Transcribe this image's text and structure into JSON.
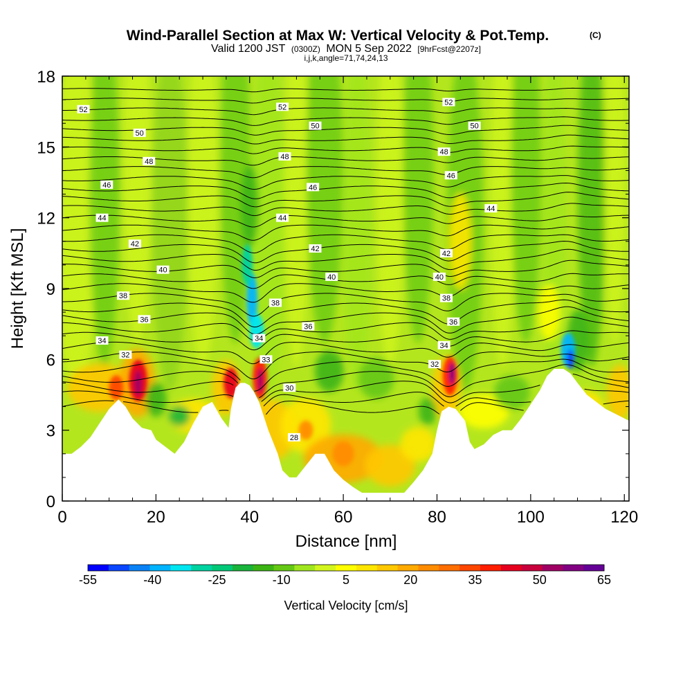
{
  "chart_data": {
    "type": "heatmap",
    "title": "Wind-Parallel Section at Max W: Vertical Velocity & Pot.Temp.",
    "title_mark": "(C)",
    "subtitle_parts": [
      "Valid 1200 JST",
      "(0300Z)",
      "MON 5 Sep 2022",
      "[9hrFcst@2207z]"
    ],
    "subtitle2": "i,j,k,angle=71,74,24,13",
    "xlabel": "Distance [nm]",
    "ylabel": "Height [Kft MSL]",
    "xlim": [
      0,
      121
    ],
    "ylim": [
      0,
      18
    ],
    "x_ticks": [
      "0",
      "20",
      "40",
      "60",
      "80",
      "100",
      "120"
    ],
    "y_ticks": [
      "0",
      "3",
      "6",
      "9",
      "12",
      "15",
      "18"
    ],
    "colorbar": {
      "label": "Vertical Velocity [cm/s]",
      "range": [
        -55,
        65
      ],
      "tick_labels": [
        "-55",
        "-40",
        "-25",
        "-10",
        "5",
        "20",
        "35",
        "50",
        "65"
      ],
      "colors": [
        "#0000ff",
        "#0a46ff",
        "#0a82f5",
        "#00b4ff",
        "#00e6f0",
        "#00d2a0",
        "#00c878",
        "#19b43c",
        "#3cb414",
        "#64c814",
        "#a0e61e",
        "#d2f51e",
        "#ffff00",
        "#ffe600",
        "#ffc800",
        "#ffaa00",
        "#ff8c00",
        "#ff6e00",
        "#ff4600",
        "#ff1e00",
        "#e6001e",
        "#c8003c",
        "#a00064",
        "#820082",
        "#640096"
      ]
    },
    "terrain_kft": [
      [
        0,
        2.0
      ],
      [
        2,
        2.0
      ],
      [
        4,
        2.3
      ],
      [
        6,
        2.7
      ],
      [
        8,
        3.3
      ],
      [
        10,
        3.9
      ],
      [
        12,
        4.3
      ],
      [
        13.5,
        4.0
      ],
      [
        15,
        3.5
      ],
      [
        17,
        3.1
      ],
      [
        19,
        3.0
      ],
      [
        20,
        2.6
      ],
      [
        22,
        2.3
      ],
      [
        24,
        2.0
      ],
      [
        26,
        2.5
      ],
      [
        28,
        3.3
      ],
      [
        30,
        4.0
      ],
      [
        32,
        4.2
      ],
      [
        34,
        3.5
      ],
      [
        35.5,
        3.1
      ],
      [
        36,
        3.9
      ],
      [
        37,
        4.8
      ],
      [
        38,
        5.0
      ],
      [
        39,
        5.0
      ],
      [
        40,
        4.9
      ],
      [
        41,
        4.6
      ],
      [
        42,
        4.2
      ],
      [
        44,
        3.0
      ],
      [
        46,
        2.0
      ],
      [
        47,
        1.3
      ],
      [
        48.5,
        1.0
      ],
      [
        50,
        1.0
      ],
      [
        52,
        1.5
      ],
      [
        54,
        2.0
      ],
      [
        56,
        2.0
      ],
      [
        58,
        1.3
      ],
      [
        60,
        0.9
      ],
      [
        62,
        0.6
      ],
      [
        64,
        0.35
      ],
      [
        70,
        0.35
      ],
      [
        73,
        0.35
      ],
      [
        75,
        0.8
      ],
      [
        77,
        1.3
      ],
      [
        79,
        2.0
      ],
      [
        80,
        3.0
      ],
      [
        81,
        3.8
      ],
      [
        82.5,
        4.0
      ],
      [
        84,
        3.9
      ],
      [
        86,
        3.4
      ],
      [
        87,
        2.5
      ],
      [
        88,
        2.2
      ],
      [
        90,
        2.4
      ],
      [
        92,
        2.8
      ],
      [
        94,
        3.0
      ],
      [
        96,
        3.0
      ],
      [
        98,
        3.5
      ],
      [
        100,
        4.1
      ],
      [
        102,
        4.7
      ],
      [
        103.5,
        5.3
      ],
      [
        105,
        5.6
      ],
      [
        107,
        5.6
      ],
      [
        108.5,
        5.4
      ],
      [
        110,
        5.0
      ],
      [
        112,
        4.5
      ],
      [
        114,
        4.2
      ],
      [
        116,
        3.9
      ],
      [
        118,
        3.7
      ],
      [
        120,
        3.5
      ],
      [
        121,
        3.4
      ]
    ],
    "theta_labels": [
      {
        "text": "52",
        "x": 4.5,
        "y": 16.6
      },
      {
        "text": "50",
        "x": 16.5,
        "y": 15.6
      },
      {
        "text": "48",
        "x": 18.5,
        "y": 14.4
      },
      {
        "text": "46",
        "x": 9.5,
        "y": 13.4
      },
      {
        "text": "44",
        "x": 8.5,
        "y": 12.0
      },
      {
        "text": "42",
        "x": 15.5,
        "y": 10.9
      },
      {
        "text": "40",
        "x": 21.5,
        "y": 9.8
      },
      {
        "text": "38",
        "x": 13,
        "y": 8.7
      },
      {
        "text": "36",
        "x": 17.5,
        "y": 7.7
      },
      {
        "text": "34",
        "x": 8.5,
        "y": 6.8
      },
      {
        "text": "32",
        "x": 13.5,
        "y": 6.2
      },
      {
        "text": "52",
        "x": 47,
        "y": 16.7
      },
      {
        "text": "50",
        "x": 54,
        "y": 15.9
      },
      {
        "text": "48",
        "x": 47.5,
        "y": 14.6
      },
      {
        "text": "46",
        "x": 53.5,
        "y": 13.3
      },
      {
        "text": "44",
        "x": 47,
        "y": 12.0
      },
      {
        "text": "42",
        "x": 54,
        "y": 10.7
      },
      {
        "text": "40",
        "x": 57.5,
        "y": 9.5
      },
      {
        "text": "38",
        "x": 45.5,
        "y": 8.4
      },
      {
        "text": "36",
        "x": 52.5,
        "y": 7.4
      },
      {
        "text": "34",
        "x": 42,
        "y": 6.9
      },
      {
        "text": "33",
        "x": 43.5,
        "y": 6.0
      },
      {
        "text": "30",
        "x": 48.5,
        "y": 4.8
      },
      {
        "text": "28",
        "x": 49.5,
        "y": 2.7
      },
      {
        "text": "52",
        "x": 82.5,
        "y": 16.9
      },
      {
        "text": "50",
        "x": 88,
        "y": 15.9
      },
      {
        "text": "48",
        "x": 81.5,
        "y": 14.8
      },
      {
        "text": "46",
        "x": 83,
        "y": 13.8
      },
      {
        "text": "44",
        "x": 91.5,
        "y": 12.4
      },
      {
        "text": "42",
        "x": 82,
        "y": 10.5
      },
      {
        "text": "40",
        "x": 80.5,
        "y": 9.5
      },
      {
        "text": "38",
        "x": 82,
        "y": 8.6
      },
      {
        "text": "36",
        "x": 83.5,
        "y": 7.6
      },
      {
        "text": "34",
        "x": 81.5,
        "y": 6.6
      },
      {
        "text": "32",
        "x": 79.5,
        "y": 5.8
      }
    ]
  }
}
